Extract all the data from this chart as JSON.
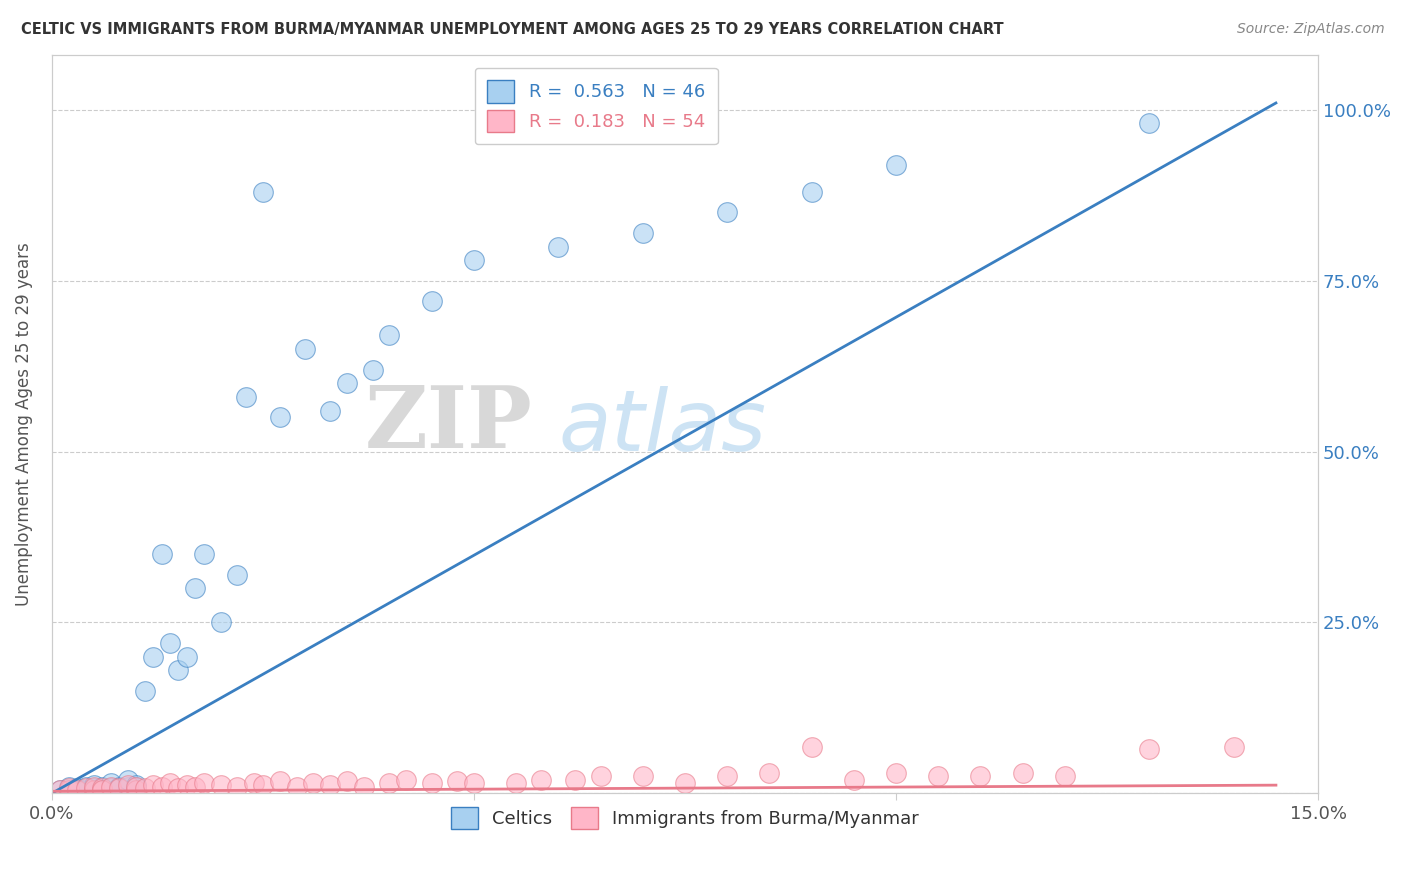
{
  "title": "CELTIC VS IMMIGRANTS FROM BURMA/MYANMAR UNEMPLOYMENT AMONG AGES 25 TO 29 YEARS CORRELATION CHART",
  "source": "Source: ZipAtlas.com",
  "ylabel": "Unemployment Among Ages 25 to 29 years",
  "xlim": [
    0,
    0.15
  ],
  "ylim": [
    0,
    1.08
  ],
  "xticks": [
    0.0,
    0.05,
    0.1,
    0.15
  ],
  "xticklabels": [
    "0.0%",
    "",
    "",
    "15.0%"
  ],
  "yticks": [
    0.0,
    0.25,
    0.5,
    0.75,
    1.0
  ],
  "right_yticklabels": [
    "",
    "25.0%",
    "50.0%",
    "75.0%",
    "100.0%"
  ],
  "legend1_label": "R =  0.563   N = 46",
  "legend2_label": "R =  0.183   N = 54",
  "celtics_color": "#a8d0f0",
  "burma_color": "#ffb6c8",
  "line1_color": "#3a7fc1",
  "line2_color": "#e87a8a",
  "watermark_zip": "ZIP",
  "watermark_atlas": "atlas",
  "background_color": "#ffffff",
  "grid_color": "#cccccc",
  "celtics_x": [
    0.001,
    0.002,
    0.002,
    0.003,
    0.003,
    0.004,
    0.004,
    0.005,
    0.005,
    0.005,
    0.006,
    0.006,
    0.007,
    0.007,
    0.008,
    0.008,
    0.009,
    0.009,
    0.01,
    0.01,
    0.011,
    0.012,
    0.013,
    0.014,
    0.015,
    0.016,
    0.017,
    0.018,
    0.02,
    0.022,
    0.023,
    0.025,
    0.027,
    0.03,
    0.033,
    0.035,
    0.038,
    0.04,
    0.045,
    0.05,
    0.06,
    0.07,
    0.08,
    0.09,
    0.1,
    0.13
  ],
  "celtics_y": [
    0.005,
    0.005,
    0.01,
    0.005,
    0.008,
    0.005,
    0.01,
    0.005,
    0.008,
    0.012,
    0.005,
    0.01,
    0.008,
    0.015,
    0.008,
    0.01,
    0.01,
    0.02,
    0.01,
    0.012,
    0.15,
    0.2,
    0.35,
    0.22,
    0.18,
    0.2,
    0.3,
    0.35,
    0.25,
    0.32,
    0.58,
    0.88,
    0.55,
    0.65,
    0.56,
    0.6,
    0.62,
    0.67,
    0.72,
    0.78,
    0.8,
    0.82,
    0.85,
    0.88,
    0.92,
    0.98
  ],
  "burma_x": [
    0.001,
    0.002,
    0.002,
    0.003,
    0.004,
    0.005,
    0.005,
    0.006,
    0.006,
    0.007,
    0.008,
    0.009,
    0.01,
    0.01,
    0.011,
    0.012,
    0.013,
    0.014,
    0.015,
    0.016,
    0.017,
    0.018,
    0.02,
    0.022,
    0.024,
    0.025,
    0.027,
    0.029,
    0.031,
    0.033,
    0.035,
    0.037,
    0.04,
    0.042,
    0.045,
    0.048,
    0.05,
    0.055,
    0.058,
    0.062,
    0.065,
    0.07,
    0.075,
    0.08,
    0.085,
    0.09,
    0.095,
    0.1,
    0.105,
    0.11,
    0.115,
    0.12,
    0.13,
    0.14
  ],
  "burma_y": [
    0.005,
    0.005,
    0.008,
    0.005,
    0.008,
    0.005,
    0.01,
    0.008,
    0.005,
    0.01,
    0.008,
    0.012,
    0.005,
    0.01,
    0.008,
    0.012,
    0.01,
    0.015,
    0.008,
    0.012,
    0.01,
    0.015,
    0.012,
    0.01,
    0.015,
    0.012,
    0.018,
    0.01,
    0.015,
    0.012,
    0.018,
    0.01,
    0.015,
    0.02,
    0.015,
    0.018,
    0.015,
    0.015,
    0.02,
    0.02,
    0.025,
    0.025,
    0.015,
    0.025,
    0.03,
    0.068,
    0.02,
    0.03,
    0.025,
    0.025,
    0.03,
    0.025,
    0.065,
    0.068
  ],
  "celtics_line_x": [
    0.0,
    0.145
  ],
  "celtics_line_y": [
    0.0,
    1.01
  ],
  "burma_line_x": [
    0.0,
    0.145
  ],
  "burma_line_y": [
    0.003,
    0.012
  ]
}
